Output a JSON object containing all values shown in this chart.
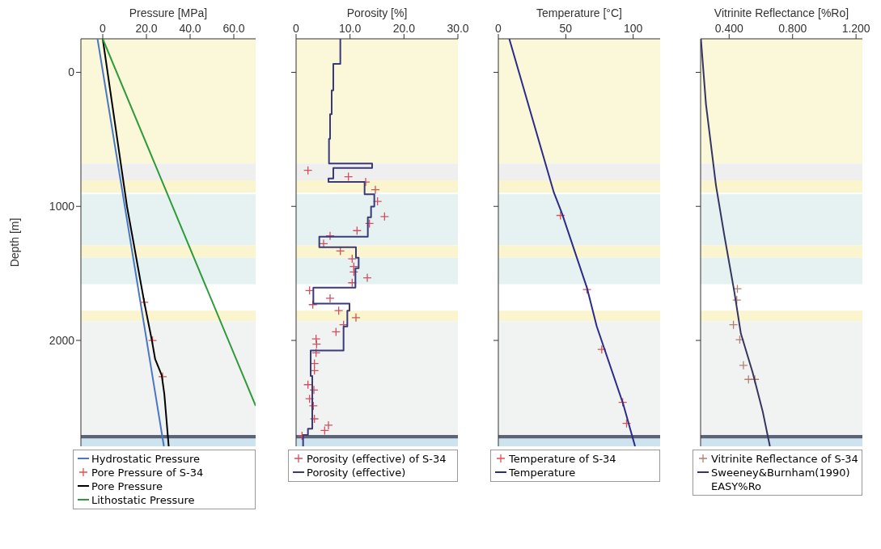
{
  "chart_data": [
    {
      "type": "line",
      "orientation": "horizontal",
      "xlabel": "Pressure [MPa]",
      "ylabel": "Depth [m]",
      "xlim": [
        -10,
        70
      ],
      "xticks": [
        0,
        {
          "value": 20,
          "label": "20.0"
        },
        {
          "value": 40,
          "label": "40.0"
        },
        {
          "value": 60,
          "label": "60.0"
        }
      ],
      "ylim": [
        2790,
        -250
      ],
      "yticks": [
        0,
        1000,
        2000
      ],
      "legend": "bottom",
      "bands": [
        {
          "axis": "y",
          "from": -250,
          "to": 681,
          "color": "#fbf7d9"
        },
        {
          "axis": "y",
          "from": 681,
          "to": 805,
          "color": "#efefef"
        },
        {
          "axis": "y",
          "from": 805,
          "to": 897,
          "color": "#fbf5cf"
        },
        {
          "axis": "y",
          "from": 910,
          "to": 1291,
          "color": "#e6f2f2"
        },
        {
          "axis": "y",
          "from": 1291,
          "to": 1383,
          "color": "#fbf5cf"
        },
        {
          "axis": "y",
          "from": 1383,
          "to": 1580,
          "color": "#e6f2f2"
        },
        {
          "axis": "y",
          "from": 1778,
          "to": 1857,
          "color": "#fbf5cf"
        },
        {
          "axis": "y",
          "from": 1857,
          "to": 2706,
          "color": "#f1f3f3"
        },
        {
          "axis": "y",
          "from": 2706,
          "to": 2733,
          "color": "#5b6476"
        },
        {
          "axis": "y",
          "from": 2733,
          "to": 2790,
          "color": "#cde4ef"
        }
      ],
      "series": [
        {
          "name": "Hydrostatic Pressure",
          "type": "line",
          "marker": "none",
          "line_style": "solid",
          "color": "#4a78c0",
          "x": [
            -250,
            2790
          ],
          "values": [
            -2.4,
            28.0
          ]
        },
        {
          "name": "Pore Pressure of S-34",
          "type": "scatter",
          "marker": "cross",
          "color": "#e05050",
          "x": [
            1715,
            2000,
            2270
          ],
          "values": [
            19.0,
            22.8,
            27.4
          ]
        },
        {
          "name": "Pore Pressure",
          "type": "line",
          "marker": "none",
          "line_style": "solid",
          "color": "#000000",
          "x": [
            -250,
            1000,
            1715,
            2000,
            2140,
            2260,
            2400,
            2790
          ],
          "values": [
            0,
            11.1,
            19.0,
            22.5,
            24.0,
            27.0,
            28.2,
            30.2
          ]
        },
        {
          "name": "Lithostatic Pressure",
          "type": "line",
          "marker": "none",
          "line_style": "solid",
          "color": "#2e9a3a",
          "x": [
            -250,
            2488
          ],
          "values": [
            0,
            70
          ]
        }
      ]
    },
    {
      "type": "line",
      "orientation": "horizontal",
      "xlabel": "Porosity [%]",
      "xlim": [
        0,
        30
      ],
      "xticks": [
        0,
        {
          "value": 10,
          "label": "10.0"
        },
        {
          "value": 20,
          "label": "20.0"
        },
        {
          "value": 30,
          "label": "30.0"
        }
      ],
      "ylim": [
        2790,
        -250
      ],
      "yticks": [
        0,
        1000,
        2000
      ],
      "tick_labels": "x",
      "legend": "bottom",
      "bands": [
        {
          "axis": "y",
          "from": -250,
          "to": 681,
          "color": "#fbf7d9"
        },
        {
          "axis": "y",
          "from": 681,
          "to": 805,
          "color": "#efefef"
        },
        {
          "axis": "y",
          "from": 805,
          "to": 897,
          "color": "#fbf5cf"
        },
        {
          "axis": "y",
          "from": 910,
          "to": 1291,
          "color": "#e6f2f2"
        },
        {
          "axis": "y",
          "from": 1291,
          "to": 1383,
          "color": "#fbf5cf"
        },
        {
          "axis": "y",
          "from": 1383,
          "to": 1580,
          "color": "#e6f2f2"
        },
        {
          "axis": "y",
          "from": 1778,
          "to": 1857,
          "color": "#fbf5cf"
        },
        {
          "axis": "y",
          "from": 1857,
          "to": 2706,
          "color": "#f1f3f3"
        },
        {
          "axis": "y",
          "from": 2706,
          "to": 2733,
          "color": "#5b6476"
        },
        {
          "axis": "y",
          "from": 2733,
          "to": 2790,
          "color": "#cde4ef"
        }
      ],
      "series": [
        {
          "name": "Porosity (effective) of S-34",
          "type": "scatter",
          "marker": "cross",
          "color": "#d05060",
          "x": [
            731,
            779,
            818,
            876,
            963,
            1076,
            1128,
            1181,
            1220,
            1278,
            1333,
            1391,
            1449,
            1489,
            1533,
            1570,
            1628,
            1686,
            1733,
            1778,
            1830,
            1883,
            1936,
            1988,
            2028,
            2093,
            2172,
            2225,
            2330,
            2370,
            2435,
            2488,
            2585,
            2633,
            2672,
            2712
          ],
          "values": [
            2.2,
            9.7,
            12.9,
            14.7,
            15.1,
            16.4,
            13.6,
            11.3,
            6.3,
            5.1,
            8.2,
            10.4,
            10.7,
            10.7,
            13.2,
            10.4,
            2.5,
            6.3,
            3.1,
            7.9,
            11.1,
            8.8,
            7.4,
            3.7,
            3.8,
            3.7,
            3.4,
            3.4,
            2.2,
            3.3,
            2.5,
            3.2,
            3.4,
            6.0,
            5.3,
            1.1
          ]
        },
        {
          "name": "Porosity (effective)",
          "type": "line",
          "marker": "none",
          "line_style": "solid",
          "color": "#3a3a7a",
          "x": [
            -250,
            -63,
            -63,
            134,
            134,
            313,
            313,
            497,
            497,
            681,
            681,
            713,
            713,
            792,
            792,
            818,
            818,
            910,
            910,
            1002,
            1002,
            1081,
            1081,
            1226,
            1226,
            1304,
            1304,
            1383,
            1383,
            1462,
            1462,
            1607,
            1607,
            1725,
            1725,
            1778,
            1778,
            1896,
            1896,
            2075,
            2075,
            2265,
            2265,
            2659,
            2659,
            2706,
            2706,
            2790
          ],
          "values": [
            8.2,
            8.2,
            6.9,
            6.9,
            6.6,
            6.6,
            6.3,
            6.3,
            6.1,
            6.1,
            14.1,
            14.1,
            6.9,
            6.9,
            6.0,
            6.0,
            12.7,
            12.7,
            14.5,
            14.5,
            13.9,
            13.9,
            13.3,
            13.3,
            4.3,
            4.3,
            11.1,
            11.1,
            11.6,
            11.6,
            11.0,
            11.0,
            3.2,
            3.2,
            9.9,
            9.9,
            9.5,
            9.5,
            8.8,
            8.8,
            2.7,
            2.7,
            3.0,
            3.0,
            2.2,
            2.2,
            1.3,
            1.3
          ]
        }
      ]
    },
    {
      "type": "line",
      "orientation": "horizontal",
      "xlabel": "Temperature [°C]",
      "xlim": [
        0,
        120
      ],
      "xticks": [
        0,
        50,
        100
      ],
      "ylim": [
        2790,
        -250
      ],
      "yticks": [
        0,
        1000,
        2000
      ],
      "tick_labels": "x",
      "legend": "bottom",
      "bands": [
        {
          "axis": "y",
          "from": -250,
          "to": 681,
          "color": "#fbf7d9"
        },
        {
          "axis": "y",
          "from": 681,
          "to": 805,
          "color": "#efefef"
        },
        {
          "axis": "y",
          "from": 805,
          "to": 897,
          "color": "#fbf5cf"
        },
        {
          "axis": "y",
          "from": 910,
          "to": 1291,
          "color": "#e6f2f2"
        },
        {
          "axis": "y",
          "from": 1291,
          "to": 1383,
          "color": "#fbf5cf"
        },
        {
          "axis": "y",
          "from": 1383,
          "to": 1580,
          "color": "#e6f2f2"
        },
        {
          "axis": "y",
          "from": 1778,
          "to": 1857,
          "color": "#fbf5cf"
        },
        {
          "axis": "y",
          "from": 1857,
          "to": 2706,
          "color": "#f1f3f3"
        },
        {
          "axis": "y",
          "from": 2706,
          "to": 2733,
          "color": "#5b6476"
        },
        {
          "axis": "y",
          "from": 2733,
          "to": 2790,
          "color": "#cde4ef"
        }
      ],
      "series": [
        {
          "name": "Temperature of S-34",
          "type": "scatter",
          "marker": "cross",
          "color": "#e05050",
          "x": [
            1068,
            1620,
            2067,
            2462,
            2619
          ],
          "values": [
            46.1,
            65.7,
            76.7,
            92.2,
            95.1
          ]
        },
        {
          "name": "Temperature",
          "type": "line",
          "marker": "none",
          "line_style": "solid",
          "color": "#2b2b8a",
          "x": [
            -250,
            897,
            1055,
            1607,
            1896,
            2475,
            2790
          ],
          "values": [
            8.1,
            41.2,
            47.3,
            65.7,
            73.0,
            92.6,
            101.4
          ]
        }
      ]
    },
    {
      "type": "line",
      "orientation": "horizontal",
      "xlabel": "Vitrinite Reflectance [%Ro]",
      "xlim": [
        0.22,
        1.24
      ],
      "xticks": [
        {
          "value": 0.4,
          "label": "0.400"
        },
        {
          "value": 0.8,
          "label": "0.800"
        },
        {
          "value": 1.2,
          "label": "1.200"
        }
      ],
      "ylim": [
        2790,
        -250
      ],
      "yticks": [
        0,
        1000,
        2000
      ],
      "tick_labels": "x",
      "legend": "bottom",
      "bands": [
        {
          "axis": "y",
          "from": -250,
          "to": 681,
          "color": "#fbf7d9"
        },
        {
          "axis": "y",
          "from": 681,
          "to": 805,
          "color": "#efefef"
        },
        {
          "axis": "y",
          "from": 805,
          "to": 897,
          "color": "#fbf5cf"
        },
        {
          "axis": "y",
          "from": 910,
          "to": 1291,
          "color": "#e6f2f2"
        },
        {
          "axis": "y",
          "from": 1291,
          "to": 1383,
          "color": "#fbf5cf"
        },
        {
          "axis": "y",
          "from": 1383,
          "to": 1580,
          "color": "#e6f2f2"
        },
        {
          "axis": "y",
          "from": 1778,
          "to": 1857,
          "color": "#fbf5cf"
        },
        {
          "axis": "y",
          "from": 1857,
          "to": 2706,
          "color": "#f1f3f3"
        },
        {
          "axis": "y",
          "from": 2706,
          "to": 2733,
          "color": "#5b6476"
        },
        {
          "axis": "y",
          "from": 2733,
          "to": 2790,
          "color": "#cde4ef"
        }
      ],
      "series": [
        {
          "name": "Vitrinite Reflectance of S-34",
          "type": "scatter",
          "marker": "cross",
          "color": "#b08070",
          "x": [
            1615,
            1699,
            1883,
            1994,
            2186,
            2291,
            2291
          ],
          "values": [
            0.452,
            0.448,
            0.427,
            0.467,
            0.49,
            0.522,
            0.562
          ]
        },
        {
          "name": "Sweeney&Burnham(1990) EASY%Ro",
          "type": "line",
          "marker": "none",
          "line_style": "solid",
          "color": "#353560",
          "x": [
            -250,
            239,
            844,
            1212,
            1633,
            1949,
            2238,
            2527,
            2790
          ],
          "values": [
            0.222,
            0.254,
            0.317,
            0.369,
            0.432,
            0.474,
            0.548,
            0.611,
            0.657
          ]
        }
      ]
    }
  ]
}
